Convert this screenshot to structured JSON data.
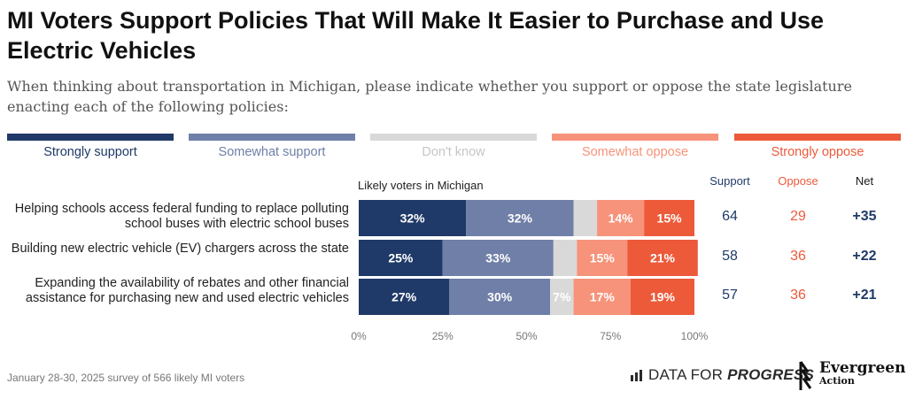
{
  "title": "MI Voters Support Policies That Will Make It Easier to Purchase and Use Electric Vehicles",
  "subtitle": "When thinking about transportation in Michigan, please indicate whether you support or oppose the state legislature enacting each of the following policies:",
  "legend": [
    {
      "label": "Strongly support",
      "color": "#1f3a68",
      "text_color": "#1f3a68"
    },
    {
      "label": "Somewhat support",
      "color": "#6f7fa7",
      "text_color": "#6f7fa7"
    },
    {
      "label": "Don't know",
      "color": "#d9d9d9",
      "text_color": "#c6c6c6"
    },
    {
      "label": "Somewhat oppose",
      "color": "#f6937a",
      "text_color": "#f6937a"
    },
    {
      "label": "Strongly oppose",
      "color": "#ec5a3a",
      "text_color": "#ec5a3a"
    }
  ],
  "group_label": "Likely voters in Michigan",
  "columns": {
    "support": "Support",
    "oppose": "Oppose",
    "net": "Net"
  },
  "column_colors": {
    "support": "#1f3a68",
    "oppose": "#ec5a3a",
    "net": "#1f3a68"
  },
  "chart_data": {
    "type": "bar",
    "orientation": "horizontal",
    "stacked": true,
    "title": "MI Voters Support Policies That Will Make It Easier to Purchase and Use Electric Vehicles",
    "categories": [
      "Helping schools access federal funding to replace polluting school buses with electric school buses",
      "Building new electric vehicle (EV) chargers across the state",
      "Expanding the availability of rebates and other financial assistance for purchasing new and used electric vehicles"
    ],
    "series": [
      {
        "name": "Strongly support",
        "values": [
          32,
          25,
          27
        ],
        "labels": [
          "32%",
          "25%",
          "27%"
        ]
      },
      {
        "name": "Somewhat support",
        "values": [
          32,
          33,
          30
        ],
        "labels": [
          "32%",
          "33%",
          "30%"
        ]
      },
      {
        "name": "Don't know",
        "values": [
          7,
          7,
          7
        ],
        "labels": [
          "",
          "",
          "7%"
        ]
      },
      {
        "name": "Somewhat oppose",
        "values": [
          14,
          15,
          17
        ],
        "labels": [
          "14%",
          "15%",
          "17%"
        ]
      },
      {
        "name": "Strongly oppose",
        "values": [
          15,
          21,
          19
        ],
        "labels": [
          "15%",
          "21%",
          "19%"
        ]
      }
    ],
    "support": [
      64,
      58,
      57
    ],
    "oppose": [
      29,
      36,
      36
    ],
    "net": [
      "+35",
      "+22",
      "+21"
    ],
    "xlim": [
      0,
      100
    ],
    "xticks": [
      "0%",
      "25%",
      "50%",
      "75%",
      "100%"
    ],
    "xlabel": "",
    "ylabel": ""
  },
  "footer": {
    "note": "January 28-30, 2025 survey of 566 likely MI voters",
    "dfp_plain": "DATA FOR",
    "dfp_bold": "PROGRESS",
    "eg_name": "Evergreen",
    "eg_sub": "Action"
  }
}
